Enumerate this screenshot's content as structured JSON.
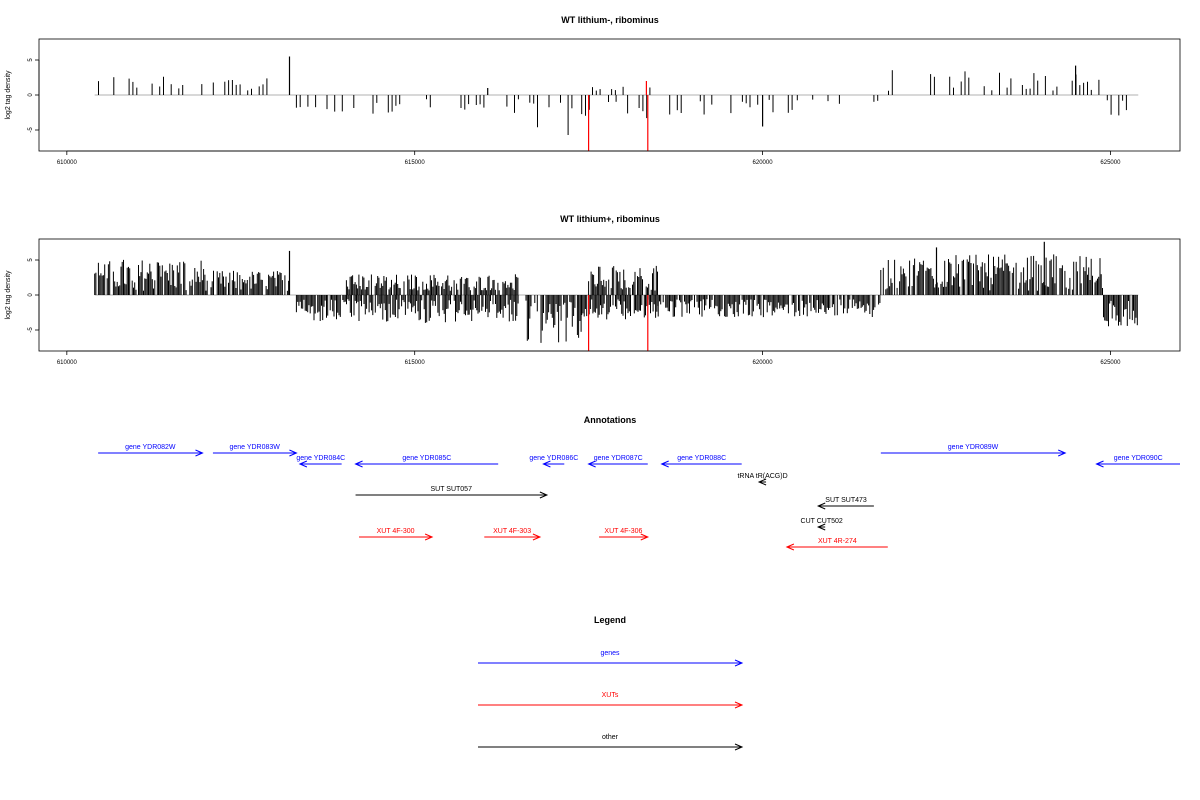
{
  "chart_data": [
    {
      "type": "bar",
      "title": "WT lithium-, ribominus",
      "xlabel": "",
      "ylabel": "log2 tag density",
      "xlim": [
        609600,
        626000
      ],
      "ylim": [
        -8,
        8
      ],
      "xticks": [
        610000,
        615000,
        620000,
        625000
      ],
      "yticks": [
        -5,
        0,
        5
      ],
      "highlight_color": "#ff0000",
      "bar_color": "#000000",
      "density": "sparse",
      "segments": [
        {
          "x0": 610400,
          "x1": 613200,
          "dir": 1,
          "amp": 2.8
        },
        {
          "x0": 613300,
          "x1": 616500,
          "dir": -1,
          "amp": 2.8
        },
        {
          "x0": 616600,
          "x1": 617400,
          "dir": -1,
          "amp": 5.8
        },
        {
          "x0": 617400,
          "x1": 618400,
          "dir": -1,
          "amp": 3.5
        },
        {
          "x0": 617500,
          "x1": 618400,
          "dir": 1,
          "amp": 1.2
        },
        {
          "x0": 618500,
          "x1": 620500,
          "dir": -1,
          "amp": 3.0
        },
        {
          "x0": 620500,
          "x1": 621700,
          "dir": -1,
          "amp": 2.0
        },
        {
          "x0": 621700,
          "x1": 624900,
          "dir": 1,
          "amp": 3.6
        },
        {
          "x0": 624900,
          "x1": 625400,
          "dir": -1,
          "amp": 3.0
        }
      ],
      "spikes": [
        {
          "x": 613200,
          "y": 5.5
        },
        {
          "x": 616050,
          "y": 1.0
        },
        {
          "x": 617500,
          "y": -8.0,
          "highlight": true
        },
        {
          "x": 618350,
          "y": -8.0,
          "highlight": true
        },
        {
          "x": 618330,
          "y": 2.0,
          "highlight": true
        },
        {
          "x": 620000,
          "y": -4.5
        },
        {
          "x": 624500,
          "y": 4.2
        }
      ]
    },
    {
      "type": "bar",
      "title": "WT lithium+, ribominus",
      "xlabel": "",
      "ylabel": "log2 tag density",
      "xlim": [
        609600,
        626000
      ],
      "ylim": [
        -8,
        8
      ],
      "xticks": [
        610000,
        615000,
        620000,
        625000
      ],
      "yticks": [
        -5,
        0,
        5
      ],
      "highlight_color": "#ff0000",
      "bar_color": "#000000",
      "density": "dense",
      "segments": [
        {
          "x0": 610400,
          "x1": 612000,
          "dir": 1,
          "amp": 5.2
        },
        {
          "x0": 612000,
          "x1": 613200,
          "dir": 1,
          "amp": 3.5
        },
        {
          "x0": 613300,
          "x1": 616500,
          "dir": -1,
          "amp": 4.0
        },
        {
          "x0": 614000,
          "x1": 616500,
          "dir": 1,
          "amp": 3.0
        },
        {
          "x0": 616600,
          "x1": 617400,
          "dir": -1,
          "amp": 7.0
        },
        {
          "x0": 617400,
          "x1": 618500,
          "dir": -1,
          "amp": 3.5
        },
        {
          "x0": 617500,
          "x1": 618500,
          "dir": 1,
          "amp": 4.2
        },
        {
          "x0": 618500,
          "x1": 621700,
          "dir": -1,
          "amp": 3.2
        },
        {
          "x0": 621700,
          "x1": 624900,
          "dir": 1,
          "amp": 5.8
        },
        {
          "x0": 624900,
          "x1": 625400,
          "dir": -1,
          "amp": 4.5
        }
      ],
      "spikes": [
        {
          "x": 613200,
          "y": 6.3
        },
        {
          "x": 617500,
          "y": -8.0,
          "highlight": true
        },
        {
          "x": 618350,
          "y": -8.0,
          "highlight": true
        },
        {
          "x": 622500,
          "y": 6.8
        },
        {
          "x": 624050,
          "y": 7.6
        }
      ]
    }
  ],
  "annotations": {
    "title": "Annotations",
    "colors": {
      "genes": "#0000ff",
      "XUTs": "#ff0000",
      "other": "#000000"
    },
    "items": [
      {
        "label": "gene YDR082W",
        "x0": 610450,
        "x1": 611950,
        "row": 0,
        "dir": 1,
        "kind": "genes"
      },
      {
        "label": "gene YDR083W",
        "x0": 612100,
        "x1": 613300,
        "row": 0,
        "dir": 1,
        "kind": "genes"
      },
      {
        "label": "gene YDR084C",
        "x0": 613350,
        "x1": 613950,
        "row": 1,
        "dir": -1,
        "kind": "genes"
      },
      {
        "label": "gene YDR085C",
        "x0": 614150,
        "x1": 616200,
        "row": 1,
        "dir": -1,
        "kind": "genes"
      },
      {
        "label": "gene YDR086C",
        "x0": 616850,
        "x1": 617150,
        "row": 1,
        "dir": -1,
        "kind": "genes"
      },
      {
        "label": "gene YDR087C",
        "x0": 617500,
        "x1": 618350,
        "row": 1,
        "dir": -1,
        "kind": "genes"
      },
      {
        "label": "gene YDR088C",
        "x0": 618550,
        "x1": 619700,
        "row": 1,
        "dir": -1,
        "kind": "genes"
      },
      {
        "label": "gene YDR089W",
        "x0": 621700,
        "x1": 624350,
        "row": 0,
        "dir": 1,
        "kind": "genes"
      },
      {
        "label": "gene YDR090C",
        "x0": 624800,
        "x1": 626000,
        "row": 1,
        "dir": -1,
        "kind": "genes"
      },
      {
        "label": "SUT SUT057",
        "x0": 614150,
        "x1": 616900,
        "row": 3,
        "dir": 1,
        "kind": "other"
      },
      {
        "label": "tRNA tR(ACG)D",
        "x0": 619950,
        "x1": 620050,
        "row": 2,
        "dir": -1,
        "kind": "other"
      },
      {
        "label": "SUT SUT473",
        "x0": 620800,
        "x1": 621600,
        "row": 4,
        "dir": -1,
        "kind": "other"
      },
      {
        "label": "CUT CUT502",
        "x0": 620800,
        "x1": 620900,
        "row": 5,
        "dir": -1,
        "kind": "other"
      },
      {
        "label": "XUT 4F-300",
        "x0": 614200,
        "x1": 615250,
        "row": 6,
        "dir": 1,
        "kind": "XUTs"
      },
      {
        "label": "XUT 4F-303",
        "x0": 616000,
        "x1": 616800,
        "row": 6,
        "dir": 1,
        "kind": "XUTs"
      },
      {
        "label": "XUT 4F-306",
        "x0": 617650,
        "x1": 618350,
        "row": 6,
        "dir": 1,
        "kind": "XUTs"
      },
      {
        "label": "XUT 4R-274",
        "x0": 620350,
        "x1": 621800,
        "row": 7,
        "dir": -1,
        "kind": "XUTs"
      }
    ]
  },
  "legend": {
    "title": "Legend",
    "entries": [
      {
        "label": "genes",
        "color": "#0000ff"
      },
      {
        "label": "XUTs",
        "color": "#ff0000"
      },
      {
        "label": "other",
        "color": "#000000"
      }
    ]
  }
}
